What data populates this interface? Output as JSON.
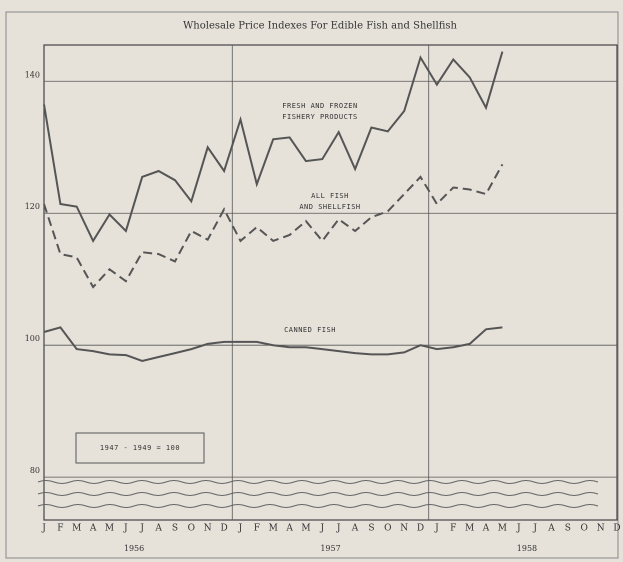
{
  "chart_data": {
    "type": "line",
    "title": "Wholesale Price Indexes For Edible Fish and Shellfish",
    "categories": [
      "J",
      "F",
      "M",
      "A",
      "M",
      "J",
      "J",
      "A",
      "S",
      "O",
      "N",
      "D",
      "J",
      "F",
      "M",
      "A",
      "M",
      "J",
      "J",
      "A",
      "S",
      "O",
      "N",
      "D",
      "J",
      "F",
      "M",
      "A",
      "M",
      "J",
      "J",
      "A",
      "S",
      "O",
      "N",
      "D"
    ],
    "year_labels": [
      "1956",
      "1957",
      "1958"
    ],
    "note": "1947 - 1949 = 100",
    "ylim": [
      73.5,
      145.5
    ],
    "yticks": [
      80,
      100,
      120,
      140
    ],
    "grid": true,
    "series": [
      {
        "name": "FRESH AND FROZEN FISHERY PRODUCTS",
        "color": "#555555",
        "style": "solid",
        "values": [
          136.5,
          121.4,
          121,
          115.8,
          119.8,
          117.3,
          125.5,
          126.4,
          125,
          121.8,
          130,
          126.4,
          134.2,
          124.4,
          131.2,
          131.5,
          127.9,
          128.2,
          132.3,
          126.7,
          133,
          132.4,
          135.5,
          143.6,
          139.5,
          143.3,
          140.6,
          136,
          144.5,
          null,
          null,
          null,
          null,
          null,
          null,
          null
        ]
      },
      {
        "name": "ALL FISH AND SHELLFISH",
        "color": "#555555",
        "style": "dashed",
        "values": [
          121.4,
          113.8,
          113.3,
          108.8,
          111.5,
          109.7,
          114.1,
          113.8,
          112.7,
          117.3,
          116,
          120.6,
          115.8,
          117.9,
          115.8,
          116.7,
          118.8,
          115.8,
          119.1,
          117.3,
          119.4,
          120.3,
          122.9,
          125.5,
          121.4,
          123.9,
          123.6,
          122.9,
          127.4,
          null,
          null,
          null,
          null,
          null,
          null,
          null
        ]
      },
      {
        "name": "CANNED FISH",
        "color": "#555555",
        "style": "solid",
        "values": [
          102,
          102.7,
          99.4,
          99.1,
          98.6,
          98.5,
          97.6,
          98.2,
          98.8,
          99.4,
          100.2,
          100.5,
          100.5,
          100.5,
          100,
          99.7,
          99.7,
          99.4,
          99.1,
          98.8,
          98.6,
          98.6,
          98.9,
          100,
          99.4,
          99.7,
          100.2,
          102.4,
          102.7,
          null,
          null,
          null,
          null,
          null,
          null,
          null
        ]
      }
    ]
  }
}
